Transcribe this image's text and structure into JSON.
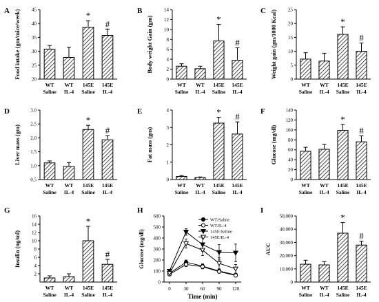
{
  "chart_data": [
    {
      "panel": "A",
      "type": "bar",
      "ylabel": "Food intake (gm/mice/week)",
      "ylim": [
        20,
        45
      ],
      "yticks": [
        20,
        25,
        30,
        35,
        40,
        45
      ],
      "categories": [
        [
          "WT",
          "Saline"
        ],
        [
          "WT",
          "IL-4"
        ],
        [
          "145E",
          "Saline"
        ],
        [
          "145E",
          "IL-4"
        ]
      ],
      "values": [
        30.8,
        27.8,
        38.7,
        35.7
      ],
      "errors": [
        1.3,
        3.7,
        2.3,
        2.3
      ],
      "markers": [
        "",
        "",
        "*",
        "#"
      ]
    },
    {
      "panel": "B",
      "type": "bar",
      "ylabel": "Body weight Gain (gm)",
      "ylim": [
        0,
        14
      ],
      "yticks": [
        0,
        2,
        4,
        6,
        8,
        10,
        12,
        14
      ],
      "categories": [
        [
          "WT",
          "Saline"
        ],
        [
          "WT",
          "IL-4"
        ],
        [
          "145E",
          "Saline"
        ],
        [
          "145E",
          "IL-4"
        ]
      ],
      "values": [
        2.6,
        2.1,
        7.7,
        3.8
      ],
      "errors": [
        0.5,
        0.5,
        3.3,
        2.5
      ],
      "markers": [
        "",
        "",
        "*",
        "#"
      ]
    },
    {
      "panel": "C",
      "type": "bar",
      "ylabel": "Weight gain (gm/1000 Kcal)",
      "ylim": [
        0,
        25
      ],
      "yticks": [
        0,
        5,
        10,
        15,
        20,
        25
      ],
      "categories": [
        [
          "WT",
          "Saline"
        ],
        [
          "WT",
          "IL-4"
        ],
        [
          "145E",
          "Saline"
        ],
        [
          "145E",
          "IL-4"
        ]
      ],
      "values": [
        7.2,
        6.5,
        16.1,
        10.0
      ],
      "errors": [
        2.3,
        2.8,
        2.7,
        3.0
      ],
      "markers": [
        "",
        "",
        "*",
        "#"
      ]
    },
    {
      "panel": "D",
      "type": "bar",
      "ylabel": "Liver mass (gm)",
      "ylim": [
        0.5,
        3.0
      ],
      "yticks": [
        0.5,
        1.0,
        1.5,
        2.0,
        2.5,
        3.0
      ],
      "categories": [
        [
          "WT",
          "Saline"
        ],
        [
          "WT",
          "IL-4"
        ],
        [
          "145E",
          "Saline"
        ],
        [
          "145E",
          "IL-4"
        ]
      ],
      "values": [
        1.1,
        0.97,
        2.3,
        1.93
      ],
      "errors": [
        0.07,
        0.14,
        0.15,
        0.15
      ],
      "markers": [
        "",
        "",
        "*",
        "#"
      ]
    },
    {
      "panel": "E",
      "type": "bar",
      "ylabel": "Fat mass (gm)",
      "ylim": [
        0,
        4
      ],
      "yticks": [
        0,
        1,
        2,
        3,
        4
      ],
      "categories": [
        [
          "WT",
          "Saline"
        ],
        [
          "WT",
          "IL-4"
        ],
        [
          "145E",
          "Saline"
        ],
        [
          "145E",
          "IL-4"
        ]
      ],
      "values": [
        0.18,
        0.12,
        3.25,
        2.62
      ],
      "errors": [
        0.05,
        0.03,
        0.33,
        0.7
      ],
      "markers": [
        "",
        "",
        "*",
        "#"
      ]
    },
    {
      "panel": "F",
      "type": "bar",
      "ylabel": "Glucose (mg/dl)",
      "ylim": [
        0,
        140
      ],
      "yticks": [
        0,
        20,
        40,
        60,
        80,
        100,
        120,
        140
      ],
      "categories": [
        [
          "WT",
          "Saline"
        ],
        [
          "WT",
          "IL-4"
        ],
        [
          "145E",
          "Saline"
        ],
        [
          "145E",
          "IL-4"
        ]
      ],
      "values": [
        57,
        61,
        99,
        76
      ],
      "errors": [
        8,
        10,
        12,
        12
      ],
      "markers": [
        "",
        "",
        "*",
        "#"
      ]
    },
    {
      "panel": "G",
      "type": "bar",
      "ylabel": "Insulin (ng/ml)",
      "ylim": [
        0,
        16
      ],
      "yticks": [
        2,
        4,
        6,
        8,
        10,
        12,
        14,
        16
      ],
      "categories": [
        [
          "WT",
          "Saline"
        ],
        [
          "WT",
          "IL-4"
        ],
        [
          "145E",
          "Saline"
        ],
        [
          "145E",
          "IL-4"
        ]
      ],
      "values": [
        1.0,
        1.3,
        10.0,
        4.3
      ],
      "errors": [
        0.5,
        0.7,
        3.5,
        1.2
      ],
      "markers": [
        "",
        "",
        "*",
        "#"
      ]
    },
    {
      "panel": "H",
      "type": "line",
      "xlabel": "Time (min)",
      "ylabel": "Glucose (mg/dl)",
      "xlim": [
        -10,
        130
      ],
      "ylim": [
        0,
        600
      ],
      "xticks": [
        0,
        30,
        60,
        90,
        120
      ],
      "yticks": [
        0,
        100,
        200,
        300,
        400,
        500,
        600
      ],
      "x": [
        0,
        30,
        60,
        90,
        120
      ],
      "series": [
        {
          "name": "WT/Saline",
          "marker": "circle-filled",
          "values": [
            80,
            180,
            145,
            100,
            65
          ],
          "errors": [
            0,
            20,
            20,
            15,
            10
          ]
        },
        {
          "name": "WT/IL-4",
          "marker": "circle-open",
          "values": [
            70,
            160,
            140,
            95,
            60
          ],
          "errors": [
            0,
            20,
            20,
            15,
            10
          ]
        },
        {
          "name": "145E/Saline",
          "marker": "triangle-down-filled",
          "values": [
            100,
            455,
            340,
            270,
            265
          ],
          "errors": [
            0,
            30,
            60,
            70,
            80
          ]
        },
        {
          "name": "145E/IL-4",
          "marker": "triangle-down-open",
          "values": [
            80,
            350,
            290,
            170,
            120
          ],
          "errors": [
            0,
            40,
            50,
            50,
            40
          ]
        }
      ],
      "legend": "top-right"
    },
    {
      "panel": "I",
      "type": "bar",
      "ylabel": "AUC",
      "ylim": [
        0,
        50000
      ],
      "yticks": [
        0,
        10000,
        20000,
        30000,
        40000,
        50000
      ],
      "yticklabels": [
        "0",
        "10,000",
        "20,000",
        "30,000",
        "40,000",
        "50,000"
      ],
      "categories": [
        [
          "WT",
          "Saline"
        ],
        [
          "WT",
          "IL-4"
        ],
        [
          "145E",
          "Saline"
        ],
        [
          "145E",
          "IL-4"
        ]
      ],
      "values": [
        13500,
        13000,
        37000,
        28000
      ],
      "errors": [
        3000,
        2500,
        8000,
        3000
      ],
      "markers": [
        "",
        "",
        "*",
        "#"
      ]
    }
  ]
}
